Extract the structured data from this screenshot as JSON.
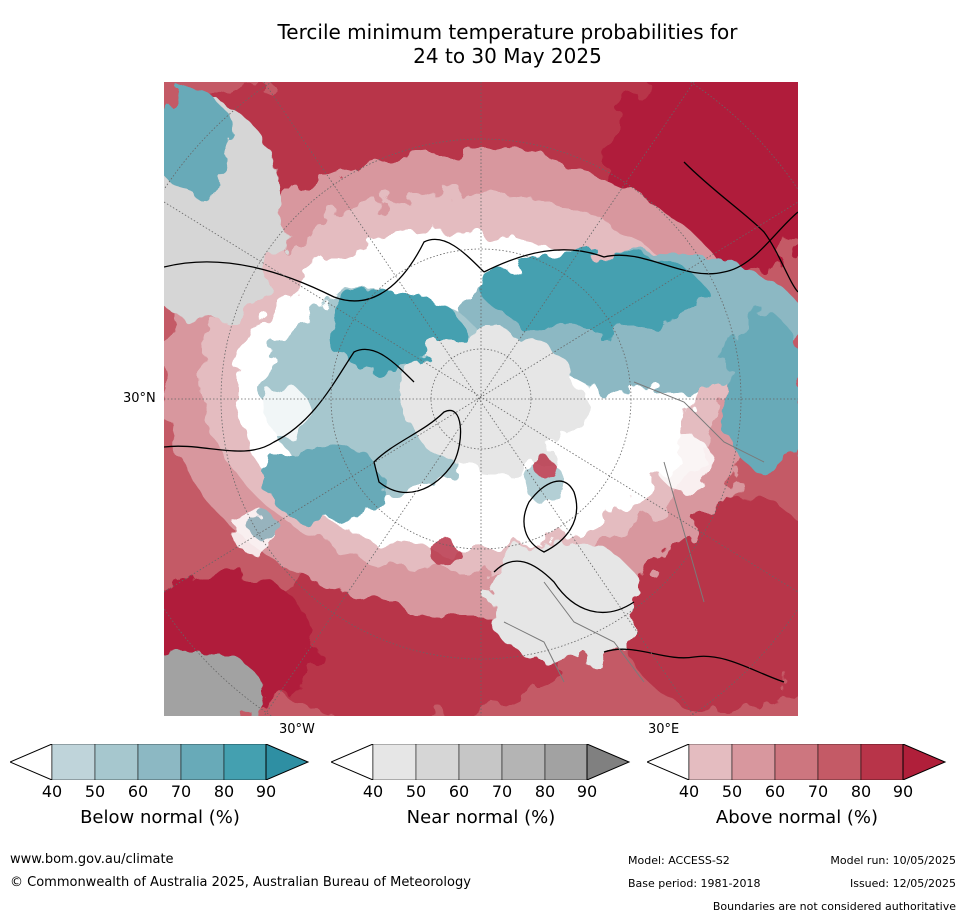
{
  "title": {
    "line1": "Tercile minimum temperature probabilities for",
    "line2": "24 to 30 May 2025"
  },
  "map": {
    "projection": "north polar stereographic",
    "labels": {
      "lat_30n": "30°N",
      "lon_30w": "30°W",
      "lon_30e": "30°E"
    },
    "regions": [
      {
        "name": "north-pacific-warm",
        "category": "above",
        "level": "80-90"
      },
      {
        "name": "north-atlantic-warm",
        "category": "above",
        "level": "80-90"
      },
      {
        "name": "siberia-cool",
        "category": "below",
        "level": "70-90"
      },
      {
        "name": "canada-cool",
        "category": "below",
        "level": "60-80"
      },
      {
        "name": "arctic-near",
        "category": "near",
        "level": "40-60"
      },
      {
        "name": "europe-mixed",
        "category": "near",
        "level": "40-60"
      },
      {
        "name": "central-asia-warm",
        "category": "above",
        "level": "60-80"
      },
      {
        "name": "alaska-warm",
        "category": "above",
        "level": "50-70"
      }
    ]
  },
  "colorbars": [
    {
      "id": "below",
      "label": "Below normal (%)",
      "ticks": [
        "40",
        "50",
        "60",
        "70",
        "80",
        "90"
      ],
      "colors": [
        "#bfd4da",
        "#a6c7ce",
        "#8cb8c3",
        "#68aab8",
        "#44a0b0",
        "#2e8fa3"
      ]
    },
    {
      "id": "near",
      "label": "Near normal (%)",
      "ticks": [
        "40",
        "50",
        "60",
        "70",
        "80",
        "90"
      ],
      "colors": [
        "#e6e6e6",
        "#d6d6d6",
        "#c6c6c6",
        "#b4b4b4",
        "#a2a2a2",
        "#808080"
      ]
    },
    {
      "id": "above",
      "label": "Above normal (%)",
      "ticks": [
        "40",
        "50",
        "60",
        "70",
        "80",
        "90"
      ],
      "colors": [
        "#e4bcc0",
        "#d8979e",
        "#cd767f",
        "#c45a66",
        "#b83449",
        "#b01f3a"
      ]
    }
  ],
  "footer": {
    "website": "www.bom.gov.au/climate",
    "copyright": "© Commonwealth of Australia 2025, Australian Bureau of Meteorology",
    "model": "Model: ACCESS-S2",
    "model_run": "Model run: 10/05/2025",
    "base_period": "Base period: 1981-2018",
    "issued": "Issued: 12/05/2025",
    "disclaimer": "Boundaries are not considered authoritative"
  }
}
